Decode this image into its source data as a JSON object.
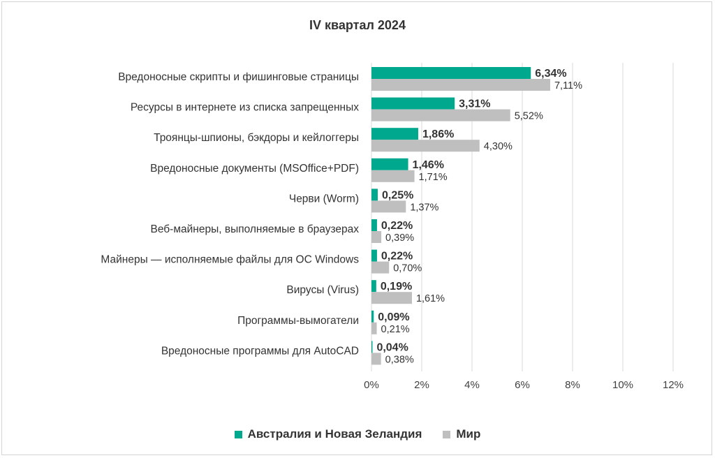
{
  "chart_data": {
    "type": "bar",
    "orientation": "horizontal",
    "title": "IV квартал 2024",
    "categories": [
      "Вредоносные скрипты и фишинговые страницы",
      "Ресурсы в интернете из списка запрещенных",
      "Троянцы-шпионы, бэкдоры и кейлоггеры",
      "Вредоносные документы (MSOffice+PDF)",
      "Черви (Worm)",
      "Веб-майнеры, выполняемые в браузерах",
      "Майнеры — исполняемые файлы для ОС Windows",
      "Вирусы (Virus)",
      "Программы-вымогатели",
      "Вредоносные программы для AutoCAD"
    ],
    "series": [
      {
        "name": "Австралия и Новая Зеландия",
        "color": "#00a88e",
        "values": [
          6.34,
          3.31,
          1.86,
          1.46,
          0.25,
          0.22,
          0.22,
          0.19,
          0.09,
          0.04
        ],
        "labels": [
          "6,34%",
          "3,31%",
          "1,86%",
          "1,46%",
          "0,25%",
          "0,22%",
          "0,22%",
          "0,19%",
          "0,09%",
          "0,04%"
        ]
      },
      {
        "name": "Мир",
        "color": "#bfbfbf",
        "values": [
          7.11,
          5.52,
          4.3,
          1.71,
          1.37,
          0.39,
          0.7,
          1.61,
          0.21,
          0.38
        ],
        "labels": [
          "7,11%",
          "5,52%",
          "4,30%",
          "1,71%",
          "1,37%",
          "0,39%",
          "0,70%",
          "1,61%",
          "0,21%",
          "0,38%"
        ]
      }
    ],
    "xlim": [
      0,
      12
    ],
    "ticks": [
      0,
      2,
      4,
      6,
      8,
      10,
      12
    ],
    "tick_labels": [
      "0%",
      "2%",
      "4%",
      "6%",
      "8%",
      "10%",
      "12%"
    ],
    "grid": true,
    "legend_position": "bottom"
  }
}
